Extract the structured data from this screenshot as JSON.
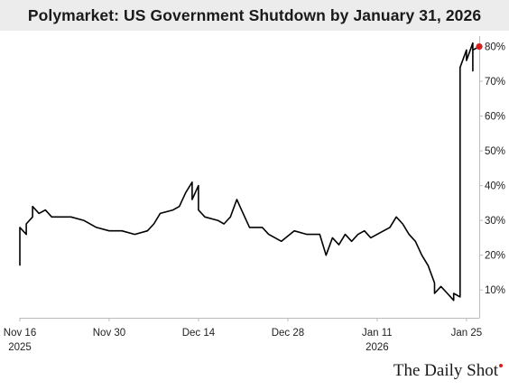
{
  "title": "Polymarket: US Government Shutdown by January 31, 2026",
  "watermark": "The Daily Shot",
  "colors": {
    "line": "#000000",
    "end_marker": "#d62020",
    "title_bg": "#ececec",
    "axis": "#bbbbbb",
    "watermark_dot": "#d62020"
  },
  "chart_data": {
    "type": "line",
    "title": "Polymarket: US Government Shutdown by January 31, 2026",
    "xlabel": "",
    "ylabel": "",
    "x_domain": [
      "2025-11-16",
      "2026-01-27"
    ],
    "ylim": [
      2,
      83
    ],
    "yticks": [
      10,
      20,
      30,
      40,
      50,
      60,
      70,
      80
    ],
    "ytick_labels": [
      "10%",
      "20%",
      "30%",
      "40%",
      "50%",
      "60%",
      "70%",
      "80%"
    ],
    "y_axis_position": "right",
    "xticks": [
      {
        "date": "2025-11-16",
        "label": "Nov 16",
        "sublabel": "2025"
      },
      {
        "date": "2025-11-30",
        "label": "Nov 30",
        "sublabel": ""
      },
      {
        "date": "2025-12-14",
        "label": "Dec 14",
        "sublabel": ""
      },
      {
        "date": "2025-12-28",
        "label": "Dec 28",
        "sublabel": ""
      },
      {
        "date": "2026-01-11",
        "label": "Jan 11",
        "sublabel": "2026"
      },
      {
        "date": "2026-01-25",
        "label": "Jan 25",
        "sublabel": ""
      }
    ],
    "grid": false,
    "legend": "none",
    "series": [
      {
        "points": [
          [
            "2025-11-16",
            17
          ],
          [
            "2025-11-16",
            28
          ],
          [
            "2025-11-17",
            26
          ],
          [
            "2025-11-17",
            29
          ],
          [
            "2025-11-18",
            31
          ],
          [
            "2025-11-18",
            34
          ],
          [
            "2025-11-19",
            32
          ],
          [
            "2025-11-20",
            33
          ],
          [
            "2025-11-21",
            31
          ],
          [
            "2025-11-22",
            31
          ],
          [
            "2025-11-24",
            31
          ],
          [
            "2025-11-26",
            30
          ],
          [
            "2025-11-28",
            28
          ],
          [
            "2025-11-30",
            27
          ],
          [
            "2025-12-02",
            27
          ],
          [
            "2025-12-04",
            26
          ],
          [
            "2025-12-06",
            27
          ],
          [
            "2025-12-07",
            29
          ],
          [
            "2025-12-08",
            32
          ],
          [
            "2025-12-10",
            33
          ],
          [
            "2025-12-11",
            34
          ],
          [
            "2025-12-12",
            38
          ],
          [
            "2025-12-13",
            41
          ],
          [
            "2025-12-13",
            36
          ],
          [
            "2025-12-14",
            40
          ],
          [
            "2025-12-14",
            33
          ],
          [
            "2025-12-15",
            31
          ],
          [
            "2025-12-17",
            30
          ],
          [
            "2025-12-18",
            29
          ],
          [
            "2025-12-19",
            31
          ],
          [
            "2025-12-20",
            36
          ],
          [
            "2025-12-21",
            32
          ],
          [
            "2025-12-22",
            28
          ],
          [
            "2025-12-24",
            28
          ],
          [
            "2025-12-25",
            26
          ],
          [
            "2025-12-27",
            24
          ],
          [
            "2025-12-29",
            27
          ],
          [
            "2025-12-31",
            26
          ],
          [
            "2026-01-02",
            26
          ],
          [
            "2026-01-03",
            20
          ],
          [
            "2026-01-04",
            25
          ],
          [
            "2026-01-05",
            23
          ],
          [
            "2026-01-06",
            26
          ],
          [
            "2026-01-07",
            24
          ],
          [
            "2026-01-08",
            26
          ],
          [
            "2026-01-09",
            27
          ],
          [
            "2026-01-10",
            25
          ],
          [
            "2026-01-11",
            26
          ],
          [
            "2026-01-13",
            28
          ],
          [
            "2026-01-14",
            31
          ],
          [
            "2026-01-15",
            29
          ],
          [
            "2026-01-16",
            26
          ],
          [
            "2026-01-17",
            24
          ],
          [
            "2026-01-18",
            20
          ],
          [
            "2026-01-19",
            17
          ],
          [
            "2026-01-20",
            12
          ],
          [
            "2026-01-20",
            9
          ],
          [
            "2026-01-21",
            11
          ],
          [
            "2026-01-22",
            9
          ],
          [
            "2026-01-23",
            7
          ],
          [
            "2026-01-23",
            9
          ],
          [
            "2026-01-24",
            8
          ],
          [
            "2026-01-24",
            55
          ],
          [
            "2026-01-24",
            74
          ],
          [
            "2026-01-25",
            79
          ],
          [
            "2026-01-25",
            76
          ],
          [
            "2026-01-26",
            81
          ],
          [
            "2026-01-26",
            73
          ],
          [
            "2026-01-26",
            79
          ],
          [
            "2026-01-27",
            80
          ]
        ],
        "end_marker_value": 80
      }
    ]
  }
}
